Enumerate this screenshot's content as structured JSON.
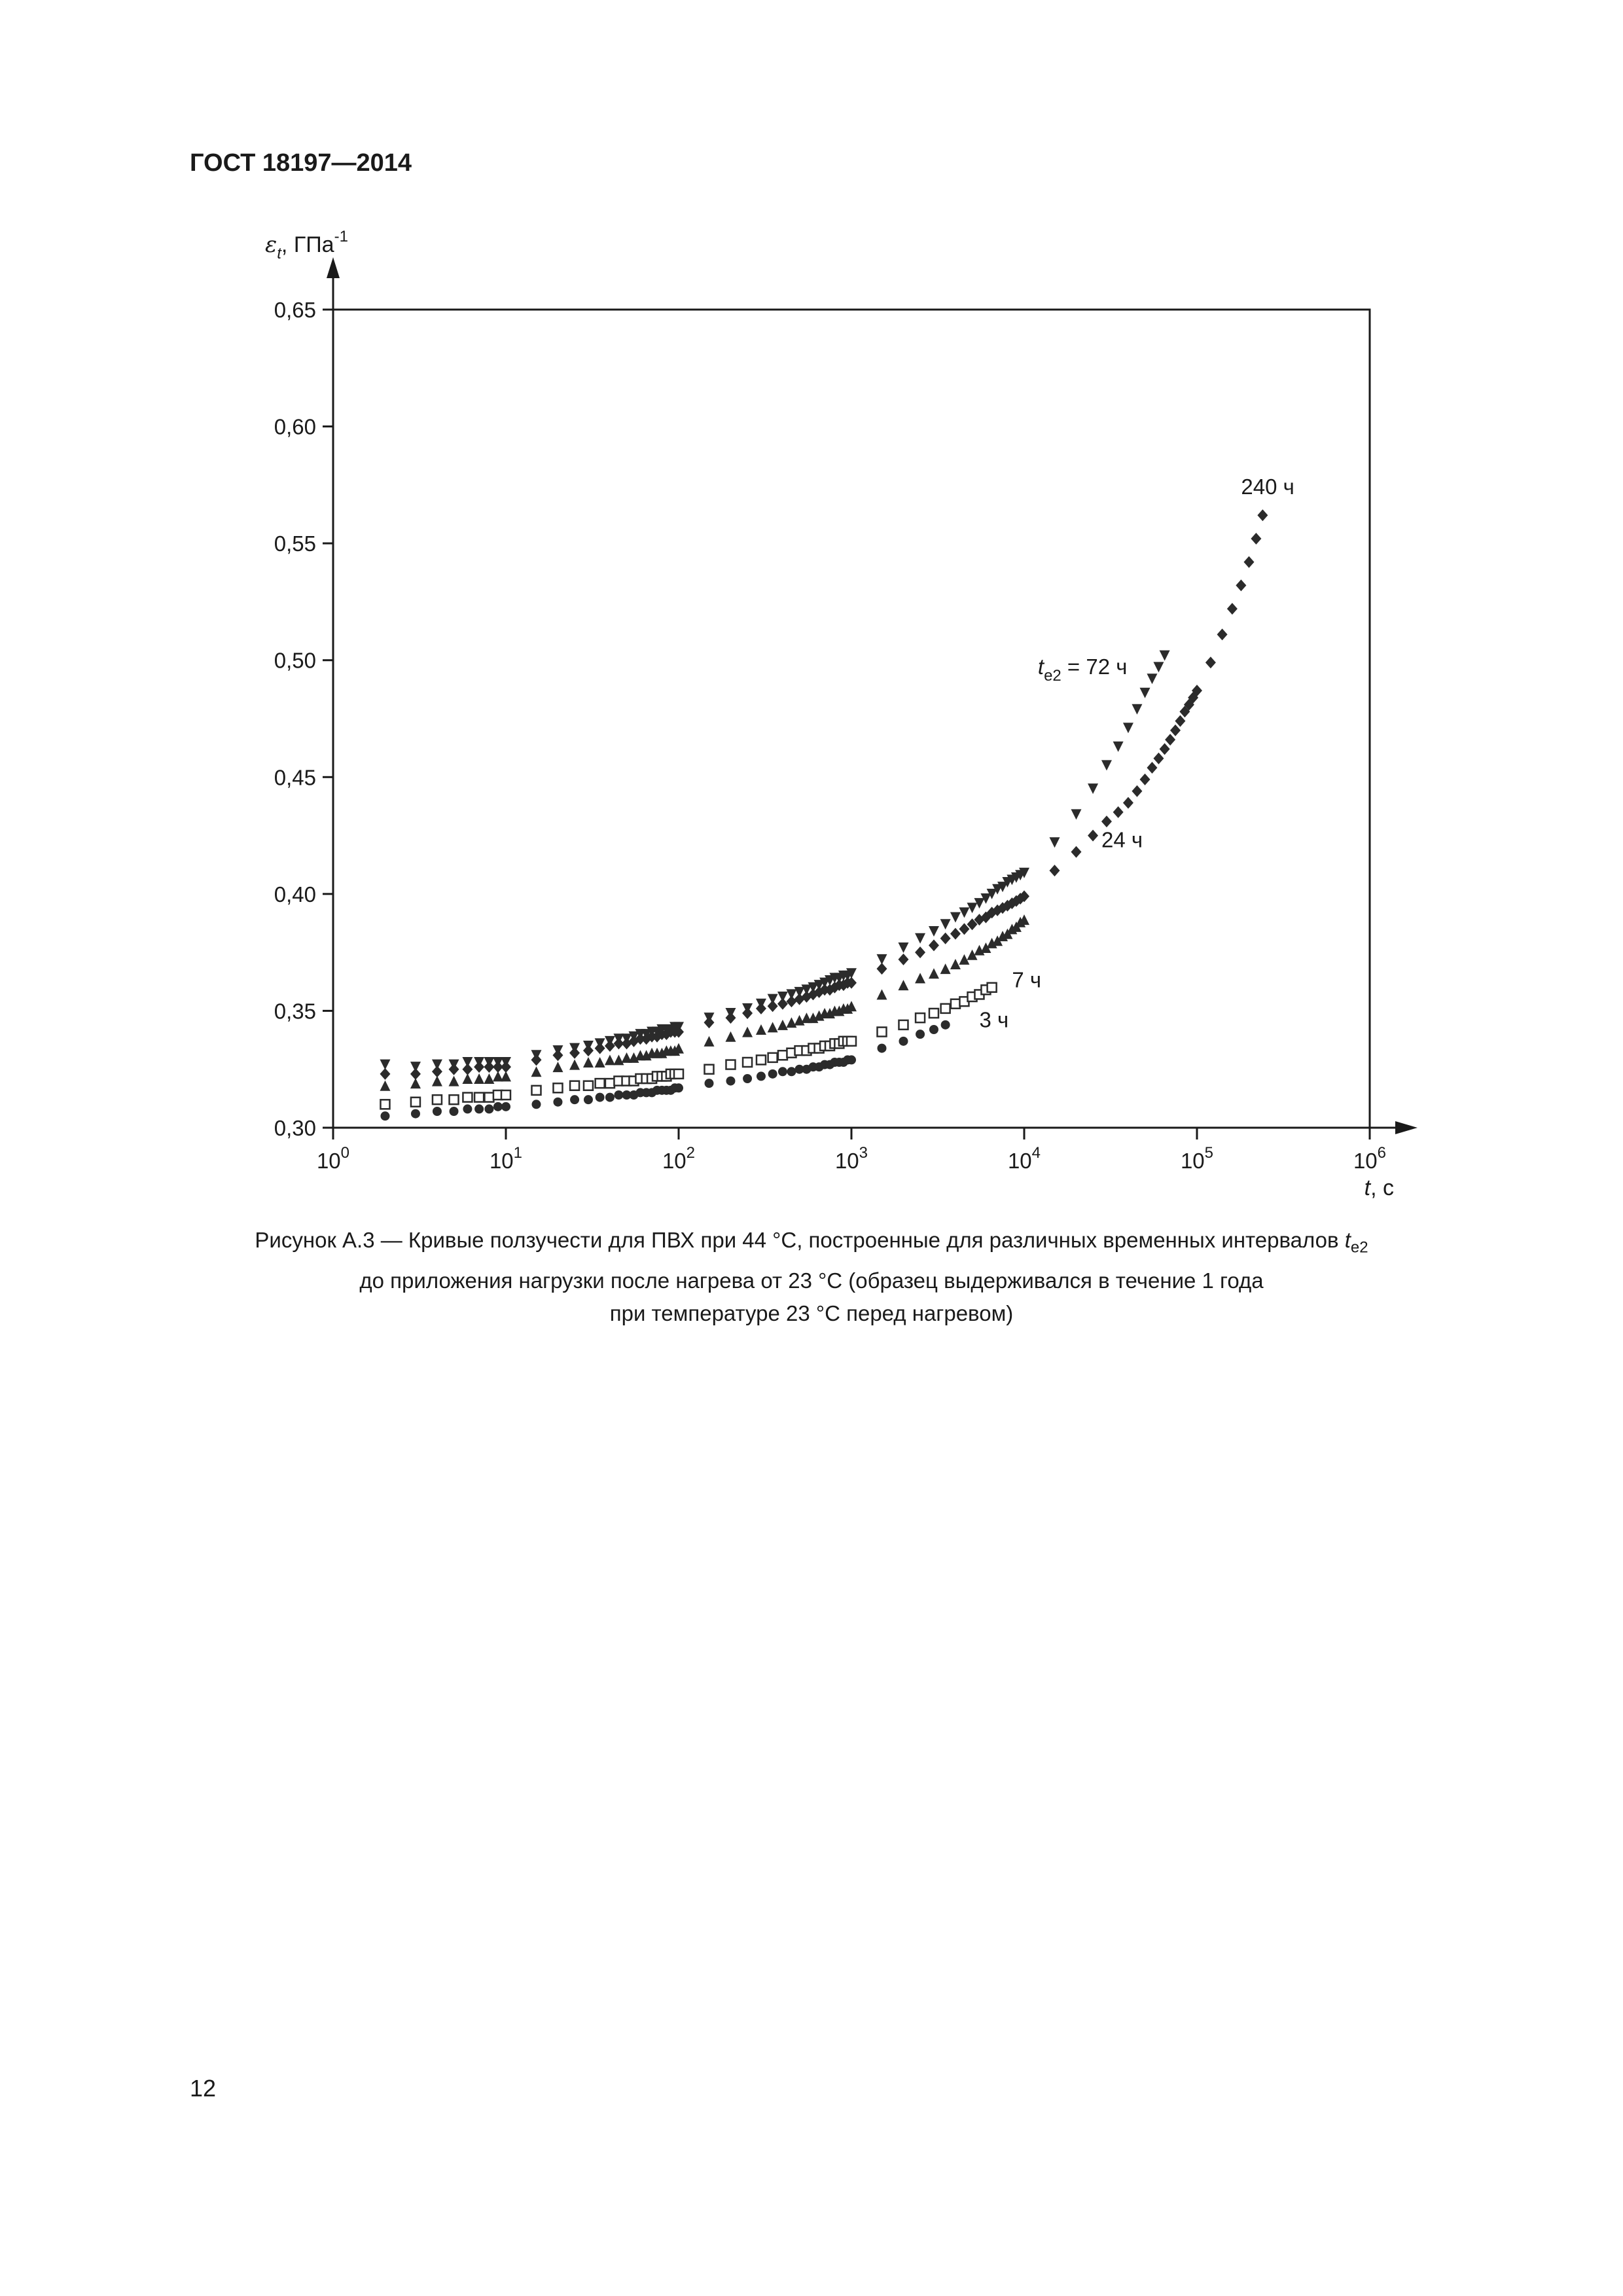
{
  "document": {
    "header": "ГОСТ 18197—2014",
    "page_number": "12"
  },
  "caption": {
    "line1_prefix": "Рисунок А.3 —  Кривые ползучести для ПВХ при 44 °С, построенные для различных временных интервалов ",
    "line1_var": "t",
    "line1_sub": "e2",
    "line2": "до приложения нагрузки после нагрева от 23 °С  (образец выдерживался в течение 1 года",
    "line3": "при температуре 23 °С перед нагревом)"
  },
  "colors": {
    "ink": "#1a1a1a",
    "marker": "#2b2b2b",
    "background": "#ffffff"
  },
  "chart_data": {
    "type": "scatter",
    "x_scale": "log",
    "xlim": [
      1,
      1000000
    ],
    "ylim": [
      0.3,
      0.65
    ],
    "grid": false,
    "legend": "none",
    "y_axis_label": {
      "symbol": "ε",
      "sub": "t",
      "unit": ", ГПа",
      "sup": "-1"
    },
    "x_axis_label": {
      "symbol": "t",
      "unit": ", с"
    },
    "y_ticks": [
      {
        "value": 0.3,
        "label": "0,30"
      },
      {
        "value": 0.35,
        "label": "0,35"
      },
      {
        "value": 0.4,
        "label": "0,40"
      },
      {
        "value": 0.45,
        "label": "0,45"
      },
      {
        "value": 0.5,
        "label": "0,50"
      },
      {
        "value": 0.55,
        "label": "0,55"
      },
      {
        "value": 0.6,
        "label": "0,60"
      },
      {
        "value": 0.65,
        "label": "0,65"
      }
    ],
    "x_ticks": [
      {
        "value": 1,
        "base": "10",
        "exp": "0"
      },
      {
        "value": 10,
        "base": "10",
        "exp": "1"
      },
      {
        "value": 100,
        "base": "10",
        "exp": "2"
      },
      {
        "value": 1000,
        "base": "10",
        "exp": "3"
      },
      {
        "value": 10000,
        "base": "10",
        "exp": "4"
      },
      {
        "value": 100000,
        "base": "10",
        "exp": "5"
      },
      {
        "value": 1000000,
        "base": "10",
        "exp": "6"
      }
    ],
    "annotations": [
      {
        "id": "240",
        "text": "240 ч",
        "x": 180000,
        "y": 0.571
      },
      {
        "id": "72",
        "var": "t",
        "sub": "e2",
        "text": " = 72 ч",
        "x": 12000,
        "y": 0.494
      },
      {
        "id": "24",
        "text": "24 ч",
        "x": 28000,
        "y": 0.42
      },
      {
        "id": "7",
        "text": "7 ч",
        "x": 8500,
        "y": 0.36
      },
      {
        "id": "3",
        "text": "3 ч",
        "x": 5500,
        "y": 0.343
      }
    ],
    "series": [
      {
        "marker": "triangle-down",
        "x": [
          2,
          3,
          4,
          5,
          6,
          7,
          8,
          9,
          10,
          15,
          20,
          25,
          30,
          35,
          40,
          45,
          50,
          55,
          60,
          65,
          70,
          75,
          80,
          85,
          90,
          95,
          100,
          150,
          200,
          250,
          300,
          350,
          400,
          450,
          500,
          550,
          600,
          650,
          700,
          750,
          800,
          850,
          900,
          950,
          1000,
          1500,
          2000,
          2500,
          3000,
          3500,
          4000,
          4500,
          5000,
          5500,
          6000,
          6500,
          7000,
          7500,
          8000,
          8500,
          9000,
          9500,
          10000,
          15000,
          20000,
          25000,
          30000,
          35000,
          40000,
          45000,
          50000,
          55000,
          60000,
          65000
        ],
        "y": [
          0.327,
          0.326,
          0.327,
          0.327,
          0.328,
          0.328,
          0.328,
          0.328,
          0.328,
          0.331,
          0.333,
          0.334,
          0.335,
          0.336,
          0.337,
          0.338,
          0.338,
          0.339,
          0.34,
          0.34,
          0.341,
          0.341,
          0.342,
          0.342,
          0.342,
          0.343,
          0.343,
          0.347,
          0.349,
          0.351,
          0.353,
          0.355,
          0.356,
          0.357,
          0.358,
          0.359,
          0.36,
          0.361,
          0.362,
          0.363,
          0.364,
          0.364,
          0.365,
          0.365,
          0.366,
          0.372,
          0.377,
          0.381,
          0.384,
          0.387,
          0.39,
          0.392,
          0.394,
          0.396,
          0.398,
          0.4,
          0.402,
          0.403,
          0.405,
          0.406,
          0.407,
          0.408,
          0.409,
          0.422,
          0.434,
          0.445,
          0.455,
          0.463,
          0.471,
          0.479,
          0.486,
          0.492,
          0.497,
          0.502
        ]
      },
      {
        "marker": "diamond",
        "x": [
          2,
          3,
          4,
          5,
          6,
          7,
          8,
          9,
          10,
          15,
          20,
          25,
          30,
          35,
          40,
          45,
          50,
          55,
          60,
          65,
          70,
          75,
          80,
          85,
          90,
          95,
          100,
          150,
          200,
          250,
          300,
          350,
          400,
          450,
          500,
          550,
          600,
          650,
          700,
          750,
          800,
          850,
          900,
          950,
          1000,
          1500,
          2000,
          2500,
          3000,
          3500,
          4000,
          4500,
          5000,
          5500,
          6000,
          6500,
          7000,
          7500,
          8000,
          8500,
          9000,
          9500,
          10000,
          15000,
          20000,
          25000,
          30000,
          35000,
          40000,
          45000,
          50000,
          55000,
          60000,
          65000,
          70000,
          75000,
          80000,
          85000,
          90000,
          95000,
          100000,
          120000,
          140000,
          160000,
          180000,
          200000,
          220000,
          240000
        ],
        "y": [
          0.323,
          0.323,
          0.324,
          0.325,
          0.325,
          0.326,
          0.326,
          0.326,
          0.326,
          0.329,
          0.331,
          0.332,
          0.333,
          0.334,
          0.335,
          0.336,
          0.336,
          0.337,
          0.338,
          0.338,
          0.339,
          0.339,
          0.34,
          0.34,
          0.341,
          0.341,
          0.341,
          0.345,
          0.347,
          0.349,
          0.351,
          0.352,
          0.353,
          0.354,
          0.355,
          0.356,
          0.357,
          0.358,
          0.359,
          0.359,
          0.36,
          0.361,
          0.361,
          0.362,
          0.362,
          0.368,
          0.372,
          0.375,
          0.378,
          0.381,
          0.383,
          0.385,
          0.387,
          0.389,
          0.39,
          0.392,
          0.393,
          0.394,
          0.395,
          0.396,
          0.397,
          0.398,
          0.399,
          0.41,
          0.418,
          0.425,
          0.431,
          0.435,
          0.439,
          0.444,
          0.449,
          0.454,
          0.458,
          0.462,
          0.466,
          0.47,
          0.474,
          0.478,
          0.481,
          0.484,
          0.487,
          0.499,
          0.511,
          0.522,
          0.532,
          0.542,
          0.552,
          0.562
        ]
      },
      {
        "marker": "triangle-up",
        "x": [
          2,
          3,
          4,
          5,
          6,
          7,
          8,
          9,
          10,
          15,
          20,
          25,
          30,
          35,
          40,
          45,
          50,
          55,
          60,
          65,
          70,
          75,
          80,
          85,
          90,
          95,
          100,
          150,
          200,
          250,
          300,
          350,
          400,
          450,
          500,
          550,
          600,
          650,
          700,
          750,
          800,
          850,
          900,
          950,
          1000,
          1500,
          2000,
          2500,
          3000,
          3500,
          4000,
          4500,
          5000,
          5500,
          6000,
          6500,
          7000,
          7500,
          8000,
          8500,
          9000,
          9500,
          10000
        ],
        "y": [
          0.318,
          0.319,
          0.32,
          0.32,
          0.321,
          0.321,
          0.321,
          0.322,
          0.322,
          0.324,
          0.326,
          0.327,
          0.328,
          0.328,
          0.329,
          0.329,
          0.33,
          0.33,
          0.331,
          0.331,
          0.332,
          0.332,
          0.332,
          0.333,
          0.333,
          0.333,
          0.334,
          0.337,
          0.339,
          0.341,
          0.342,
          0.343,
          0.344,
          0.345,
          0.346,
          0.347,
          0.347,
          0.348,
          0.349,
          0.349,
          0.35,
          0.35,
          0.351,
          0.351,
          0.352,
          0.357,
          0.361,
          0.364,
          0.366,
          0.368,
          0.37,
          0.372,
          0.374,
          0.376,
          0.377,
          0.379,
          0.38,
          0.382,
          0.383,
          0.385,
          0.386,
          0.388,
          0.389
        ]
      },
      {
        "marker": "square-open",
        "x": [
          2,
          3,
          4,
          5,
          6,
          7,
          8,
          9,
          10,
          15,
          20,
          25,
          30,
          35,
          40,
          45,
          50,
          55,
          60,
          65,
          70,
          75,
          80,
          85,
          90,
          95,
          100,
          150,
          200,
          250,
          300,
          350,
          400,
          450,
          500,
          550,
          600,
          650,
          700,
          750,
          800,
          850,
          900,
          950,
          1000,
          1500,
          2000,
          2500,
          3000,
          3500,
          4000,
          4500,
          5000,
          5500,
          6000,
          6500
        ],
        "y": [
          0.31,
          0.311,
          0.312,
          0.312,
          0.313,
          0.313,
          0.313,
          0.314,
          0.314,
          0.316,
          0.317,
          0.318,
          0.318,
          0.319,
          0.319,
          0.32,
          0.32,
          0.32,
          0.321,
          0.321,
          0.321,
          0.322,
          0.322,
          0.322,
          0.323,
          0.323,
          0.323,
          0.325,
          0.327,
          0.328,
          0.329,
          0.33,
          0.331,
          0.332,
          0.333,
          0.333,
          0.334,
          0.334,
          0.335,
          0.335,
          0.336,
          0.336,
          0.337,
          0.337,
          0.337,
          0.341,
          0.344,
          0.347,
          0.349,
          0.351,
          0.353,
          0.354,
          0.356,
          0.357,
          0.359,
          0.36
        ]
      },
      {
        "marker": "circle",
        "x": [
          2,
          3,
          4,
          5,
          6,
          7,
          8,
          9,
          10,
          15,
          20,
          25,
          30,
          35,
          40,
          45,
          50,
          55,
          60,
          65,
          70,
          75,
          80,
          85,
          90,
          95,
          100,
          150,
          200,
          250,
          300,
          350,
          400,
          450,
          500,
          550,
          600,
          650,
          700,
          750,
          800,
          850,
          900,
          950,
          1000,
          1500,
          2000,
          2500,
          3000,
          3500
        ],
        "y": [
          0.305,
          0.306,
          0.307,
          0.307,
          0.308,
          0.308,
          0.308,
          0.309,
          0.309,
          0.31,
          0.311,
          0.312,
          0.312,
          0.313,
          0.313,
          0.314,
          0.314,
          0.314,
          0.315,
          0.315,
          0.315,
          0.316,
          0.316,
          0.316,
          0.316,
          0.317,
          0.317,
          0.319,
          0.32,
          0.321,
          0.322,
          0.323,
          0.324,
          0.324,
          0.325,
          0.325,
          0.326,
          0.326,
          0.327,
          0.327,
          0.328,
          0.328,
          0.328,
          0.329,
          0.329,
          0.334,
          0.337,
          0.34,
          0.342,
          0.344
        ]
      }
    ]
  }
}
